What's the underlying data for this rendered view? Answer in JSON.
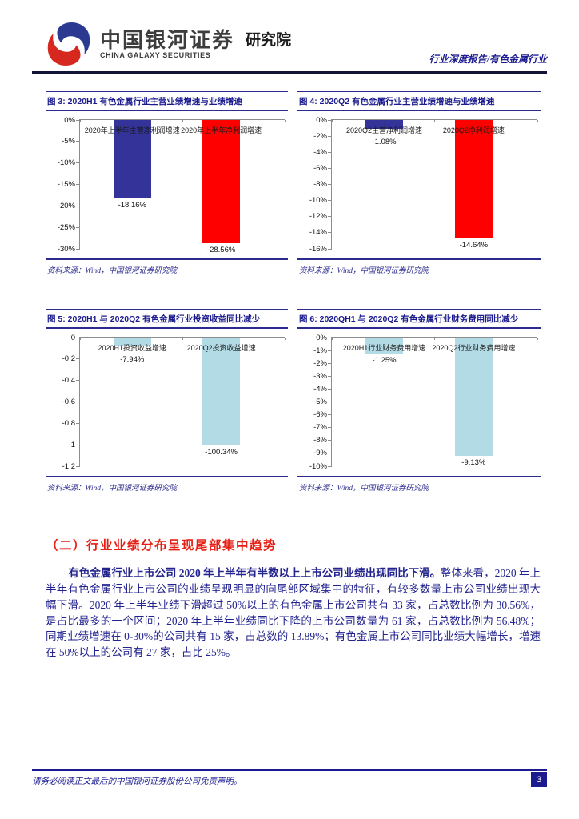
{
  "header": {
    "logo_cn": "中国银河证券",
    "logo_en": "CHINA GALAXY SECURITIES",
    "institute": "研究院",
    "report_type": "行业深度报告/有色金属行业"
  },
  "colors": {
    "navy_bar": "#333399",
    "red_bar": "#ff0000",
    "light_blue_bar": "#b3dbe6",
    "accent_navy": "#1b1b8f",
    "heading_red": "#e62015"
  },
  "chart_data": [
    {
      "type": "bar",
      "title": "图 3:  2020H1 有色金属行业主营业绩增速与业绩增速",
      "categories": [
        "2020年上半年主营净利润增速",
        "2020年上半年净利润增速"
      ],
      "values": [
        -18.16,
        -28.56
      ],
      "value_labels": [
        "-18.16%",
        "-28.56%"
      ],
      "bar_colors": [
        "#333399",
        "#ff0000"
      ],
      "y_ticks": [
        "0%",
        "-5%",
        "-10%",
        "-15%",
        "-20%",
        "-25%",
        "-30%"
      ],
      "ylim": [
        -30,
        0
      ],
      "xlabel": "",
      "ylabel": "",
      "grid": false,
      "legend": "none",
      "source": "资料来源：Wind，中国银河证券研究院"
    },
    {
      "type": "bar",
      "title": "图 4:  2020Q2 有色金属行业主营业绩增速与业绩增速",
      "categories": [
        "2020Q2主营净利润增速",
        "2020Q2净利润增速"
      ],
      "values": [
        -1.08,
        -14.64
      ],
      "value_labels": [
        "-1.08%",
        "-14.64%"
      ],
      "bar_colors": [
        "#333399",
        "#ff0000"
      ],
      "y_ticks": [
        "0%",
        "-2%",
        "-4%",
        "-6%",
        "-8%",
        "-10%",
        "-12%",
        "-14%",
        "-16%"
      ],
      "ylim": [
        -16,
        0
      ],
      "xlabel": "",
      "ylabel": "",
      "grid": false,
      "legend": "none",
      "source": "资料来源：Wind，中国银河证券研究院"
    },
    {
      "type": "bar",
      "title": "图 5:  2020H1 与 2020Q2 有色金属行业投资收益同比减少",
      "categories": [
        "2020H1投资收益增速",
        "2020Q2投资收益增速"
      ],
      "values": [
        -0.0794,
        -1.0034
      ],
      "value_labels": [
        "-7.94%",
        "-100.34%"
      ],
      "bar_colors": [
        "#b3dbe6",
        "#b3dbe6"
      ],
      "y_ticks": [
        "0",
        "-0.2",
        "-0.4",
        "-0.6",
        "-0.8",
        "-1",
        "-1.2"
      ],
      "ylim": [
        -1.2,
        0
      ],
      "xlabel": "",
      "ylabel": "",
      "grid": false,
      "legend": "none",
      "source": "资料来源：Wind，中国银河证券研究院"
    },
    {
      "type": "bar",
      "title": "图 6:  2020QH1 与 2020Q2 有色金属行业财务费用同比减少",
      "categories": [
        "2020H1行业财务费用增速",
        "2020Q2行业财务费用增速"
      ],
      "values": [
        -1.25,
        -9.13
      ],
      "value_labels": [
        "-1.25%",
        "-9.13%"
      ],
      "bar_colors": [
        "#b3dbe6",
        "#b3dbe6"
      ],
      "y_ticks": [
        "0%",
        "-1%",
        "-2%",
        "-3%",
        "-4%",
        "-5%",
        "-6%",
        "-7%",
        "-8%",
        "-9%",
        "-10%"
      ],
      "ylim": [
        -10,
        0
      ],
      "xlabel": "",
      "ylabel": "",
      "grid": false,
      "legend": "none",
      "source": "资料来源：Wind，中国银河证券研究院"
    }
  ],
  "section": {
    "heading": "（二）行业业绩分布呈现尾部集中趋势",
    "lead": "有色金属行业上市公司 2020 年上半年有半数以上上市公司业绩出现同比下滑。",
    "body": "整体来看，2020 年上半年有色金属行业上市公司的业绩呈现明显的向尾部区域集中的特征，有较多数量上市公司业绩出现大幅下滑。2020 年上半年业绩下滑超过 50%以上的有色金属上市公司共有 33 家，占总数比例为 30.56%，是占比最多的一个区间；2020 年上半年业绩同比下降的上市公司数量为 61 家，占总数比例为 56.48%；同期业绩增速在 0-30%的公司共有 15 家，占总数的 13.89%；有色金属上市公司同比业绩大幅增长，增速在 50%以上的公司有 27 家，占比 25%。"
  },
  "footer": {
    "disclaimer": "请务必阅读正文最后的中国银河证券股份公司免责声明。",
    "page_number": "3"
  }
}
